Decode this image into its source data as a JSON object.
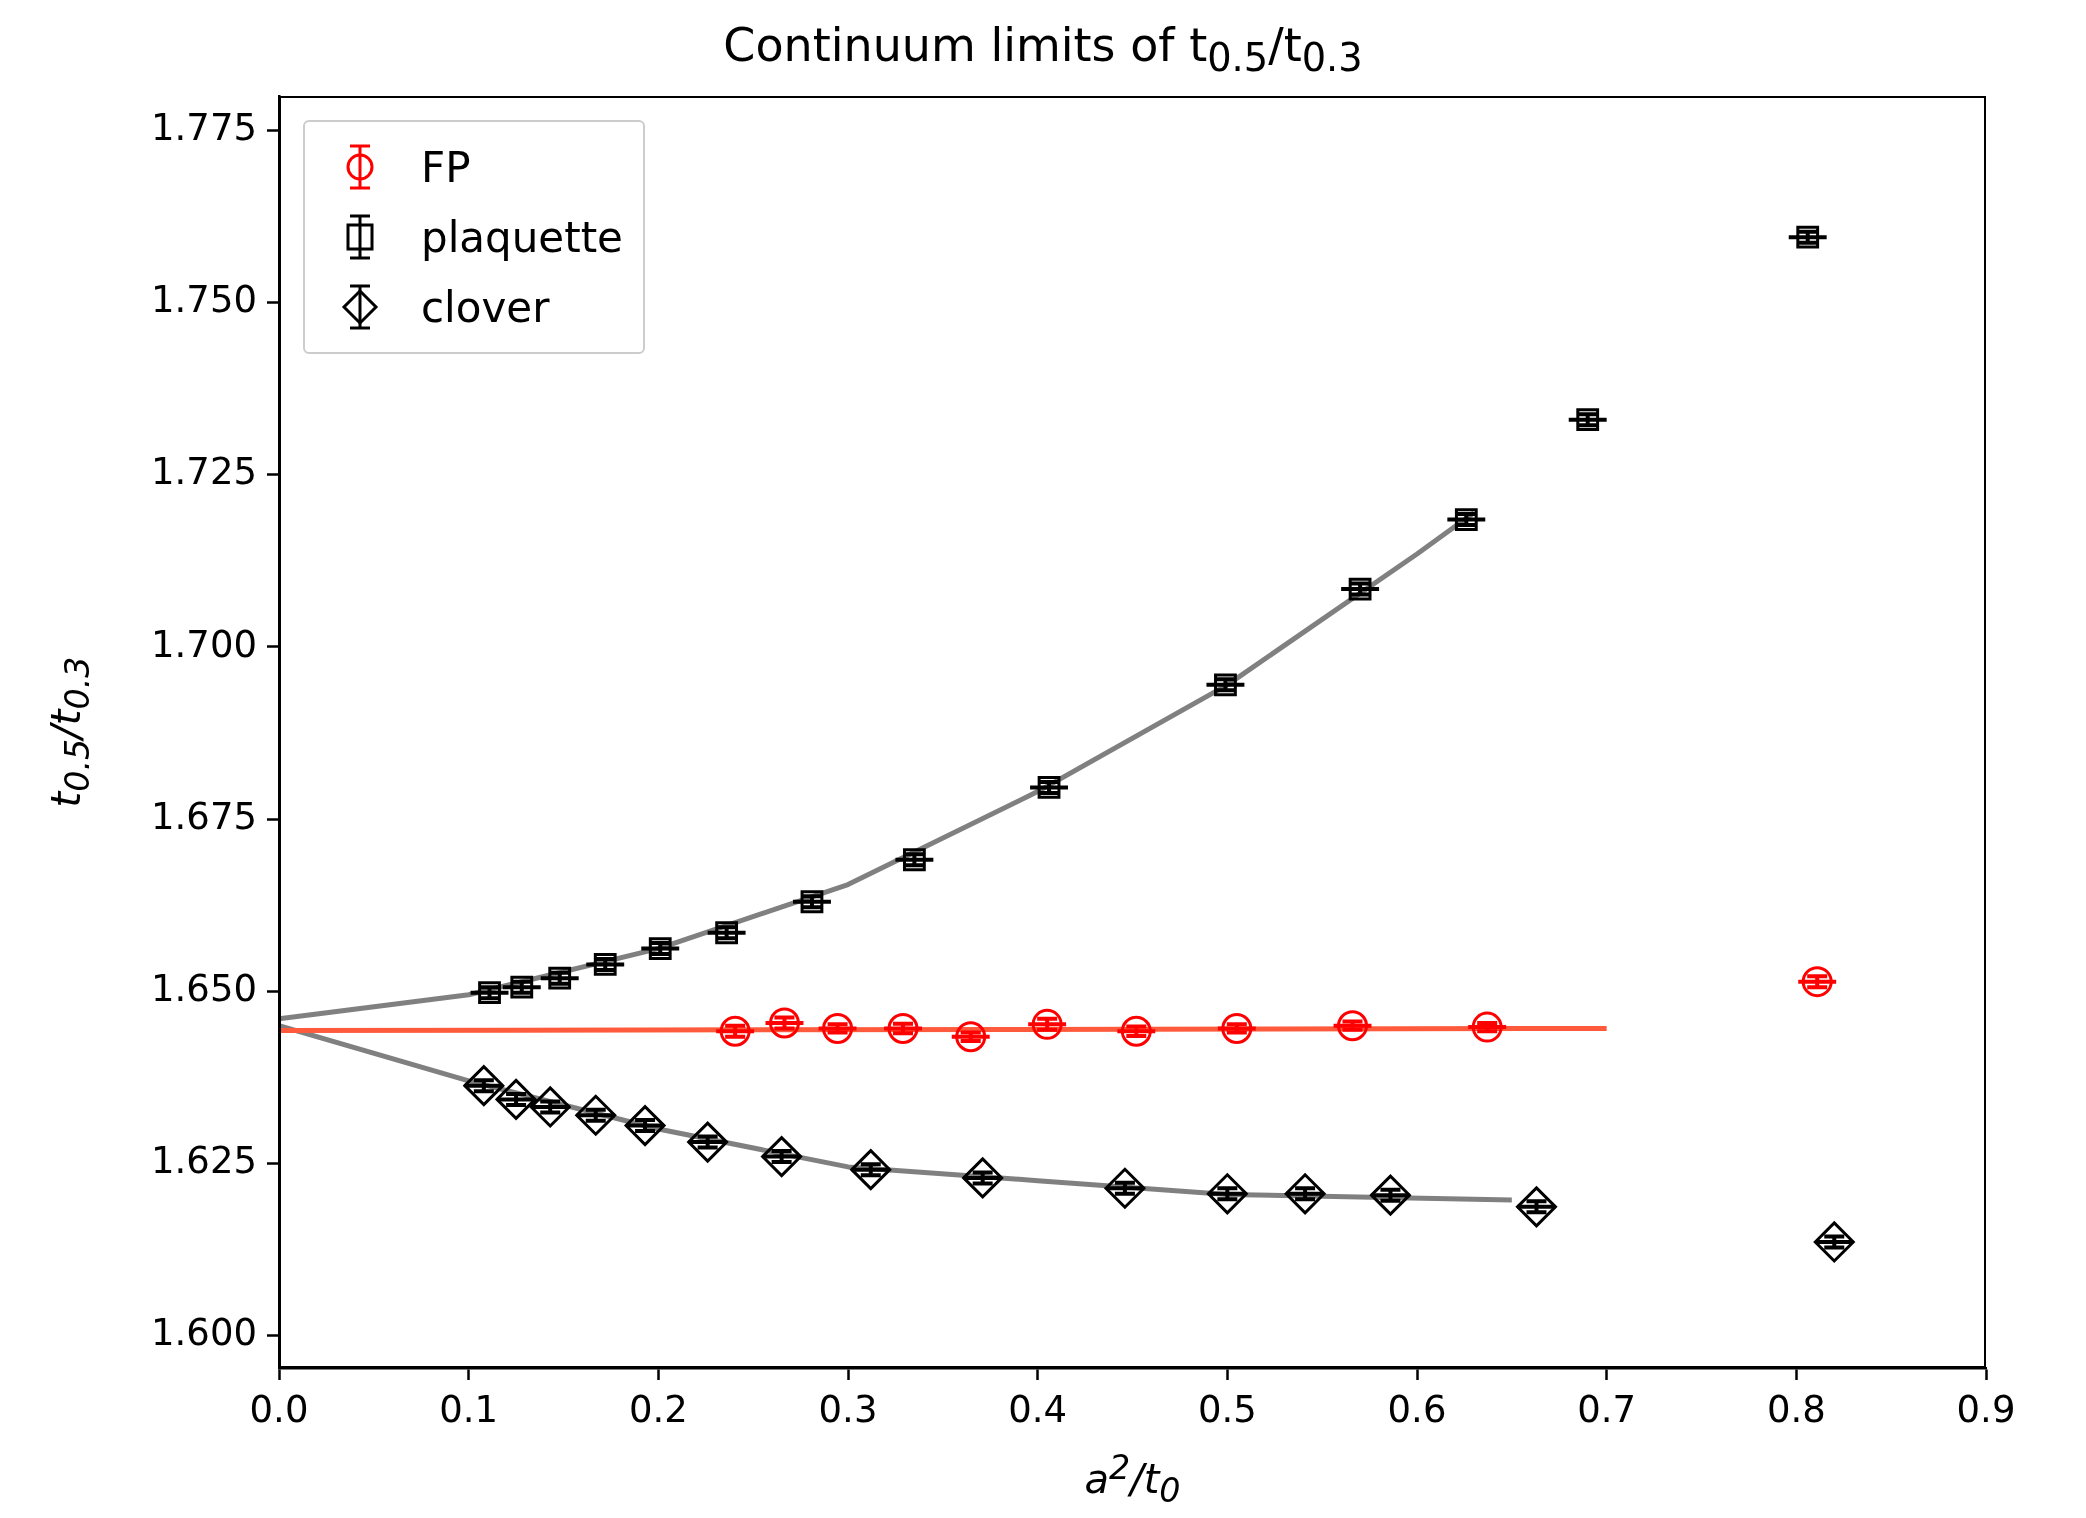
{
  "chart_data": {
    "type": "scatter",
    "title": "Continuum limits of t$_{0.5}$/t$_{0.3}$",
    "xlabel": "a$^{2}$/t$_{0}$",
    "ylabel": "t$_{0.5}$/t$_{0.3}$",
    "xlim": [
      0,
      0.9
    ],
    "ylim": [
      1.5953,
      1.78
    ],
    "xticks": [
      {
        "value": 0,
        "label": "0.0"
      },
      {
        "value": 0.1,
        "label": "0.1"
      },
      {
        "value": 0.2,
        "label": "0.2"
      },
      {
        "value": 0.3,
        "label": "0.3"
      },
      {
        "value": 0.4,
        "label": "0.4"
      },
      {
        "value": 0.5,
        "label": "0.5"
      },
      {
        "value": 0.6,
        "label": "0.6"
      },
      {
        "value": 0.7,
        "label": "0.7"
      },
      {
        "value": 0.8,
        "label": "0.8"
      },
      {
        "value": 0.9,
        "label": "0.9"
      }
    ],
    "yticks": [
      {
        "value": 1.6,
        "label": "1.600"
      },
      {
        "value": 1.625,
        "label": "1.625"
      },
      {
        "value": 1.65,
        "label": "1.650"
      },
      {
        "value": 1.675,
        "label": "1.675"
      },
      {
        "value": 1.7,
        "label": "1.700"
      },
      {
        "value": 1.725,
        "label": "1.725"
      },
      {
        "value": 1.75,
        "label": "1.750"
      },
      {
        "value": 1.775,
        "label": "1.775"
      }
    ],
    "grid": false,
    "legend": "top left",
    "series": [
      {
        "name": "FP",
        "marker": "circle",
        "color": "#ff0000",
        "x": [
          0.2405,
          0.2665,
          0.2945,
          0.329,
          0.3647,
          0.405,
          0.452,
          0.505,
          0.566,
          0.637,
          0.811
        ],
        "values": [
          1.6442,
          1.6454,
          1.6446,
          1.6446,
          1.6434,
          1.6452,
          1.6442,
          1.6446,
          1.645,
          1.6448,
          1.6514
        ],
        "errors": [
          0.0008,
          0.0008,
          0.0006,
          0.0007,
          0.0006,
          0.0008,
          0.0007,
          0.0006,
          0.0006,
          0.0006,
          0.0008
        ],
        "xerrors": [
          0.01,
          0.01,
          0.01,
          0.01,
          0.01,
          0.01,
          0.01,
          0.01,
          0.01,
          0.01,
          0.01
        ]
      },
      {
        "name": "plaquette",
        "marker": "square",
        "color": "#000000",
        "x": [
          0.111,
          0.128,
          0.148,
          0.172,
          0.201,
          0.236,
          0.281,
          0.335,
          0.406,
          0.499,
          0.57,
          0.626,
          0.69,
          0.806
        ],
        "values": [
          1.6498,
          1.6506,
          1.6519,
          1.6539,
          1.6562,
          1.6585,
          1.663,
          1.6691,
          1.6796,
          1.6945,
          1.7084,
          1.7185,
          1.733,
          1.7595
        ],
        "errors": [
          0.0008,
          0.0008,
          0.0008,
          0.0008,
          0.0008,
          0.0008,
          0.0008,
          0.0008,
          0.0008,
          0.0008,
          0.0008,
          0.0008,
          0.0008,
          0.0008
        ],
        "xerrors": [
          0.01,
          0.01,
          0.01,
          0.01,
          0.01,
          0.01,
          0.01,
          0.01,
          0.01,
          0.01,
          0.01,
          0.01,
          0.01,
          0.01
        ]
      },
      {
        "name": "clover",
        "marker": "diamond",
        "color": "#000000",
        "x": [
          0.108,
          0.125,
          0.143,
          0.167,
          0.193,
          0.226,
          0.265,
          0.312,
          0.371,
          0.446,
          0.5,
          0.541,
          0.586,
          0.663,
          0.82
        ],
        "values": [
          1.6363,
          1.6343,
          1.6332,
          1.632,
          1.6305,
          1.6281,
          1.626,
          1.6241,
          1.6229,
          1.6214,
          1.6206,
          1.6206,
          1.6204,
          1.6187,
          1.6136
        ],
        "errors": [
          0.0008,
          0.0008,
          0.0008,
          0.0008,
          0.0008,
          0.0008,
          0.0008,
          0.0008,
          0.0008,
          0.0008,
          0.0008,
          0.0008,
          0.0008,
          0.0008,
          0.0008
        ],
        "xerrors": [
          0.01,
          0.01,
          0.01,
          0.01,
          0.01,
          0.01,
          0.01,
          0.01,
          0.01,
          0.01,
          0.01,
          0.01,
          0.01,
          0.01,
          0.01
        ]
      },
      {
        "type": "line",
        "color": "#ff5a3c",
        "x": [
          0,
          0.7
        ],
        "values": [
          1.6443,
          1.6446
        ]
      },
      {
        "type": "line",
        "color": "#808080",
        "x": [
          0,
          0.1,
          0.2,
          0.3,
          0.4,
          0.5,
          0.6,
          0.63
        ],
        "values": [
          1.646,
          1.6495,
          1.6562,
          1.6655,
          1.679,
          1.6945,
          1.7135,
          1.7195
        ]
      },
      {
        "type": "line",
        "color": "#808080",
        "x": [
          0,
          0.1,
          0.2,
          0.3,
          0.4,
          0.5,
          0.65
        ],
        "values": [
          1.645,
          1.637,
          1.63,
          1.6245,
          1.6225,
          1.6205,
          1.6197
        ]
      }
    ]
  }
}
